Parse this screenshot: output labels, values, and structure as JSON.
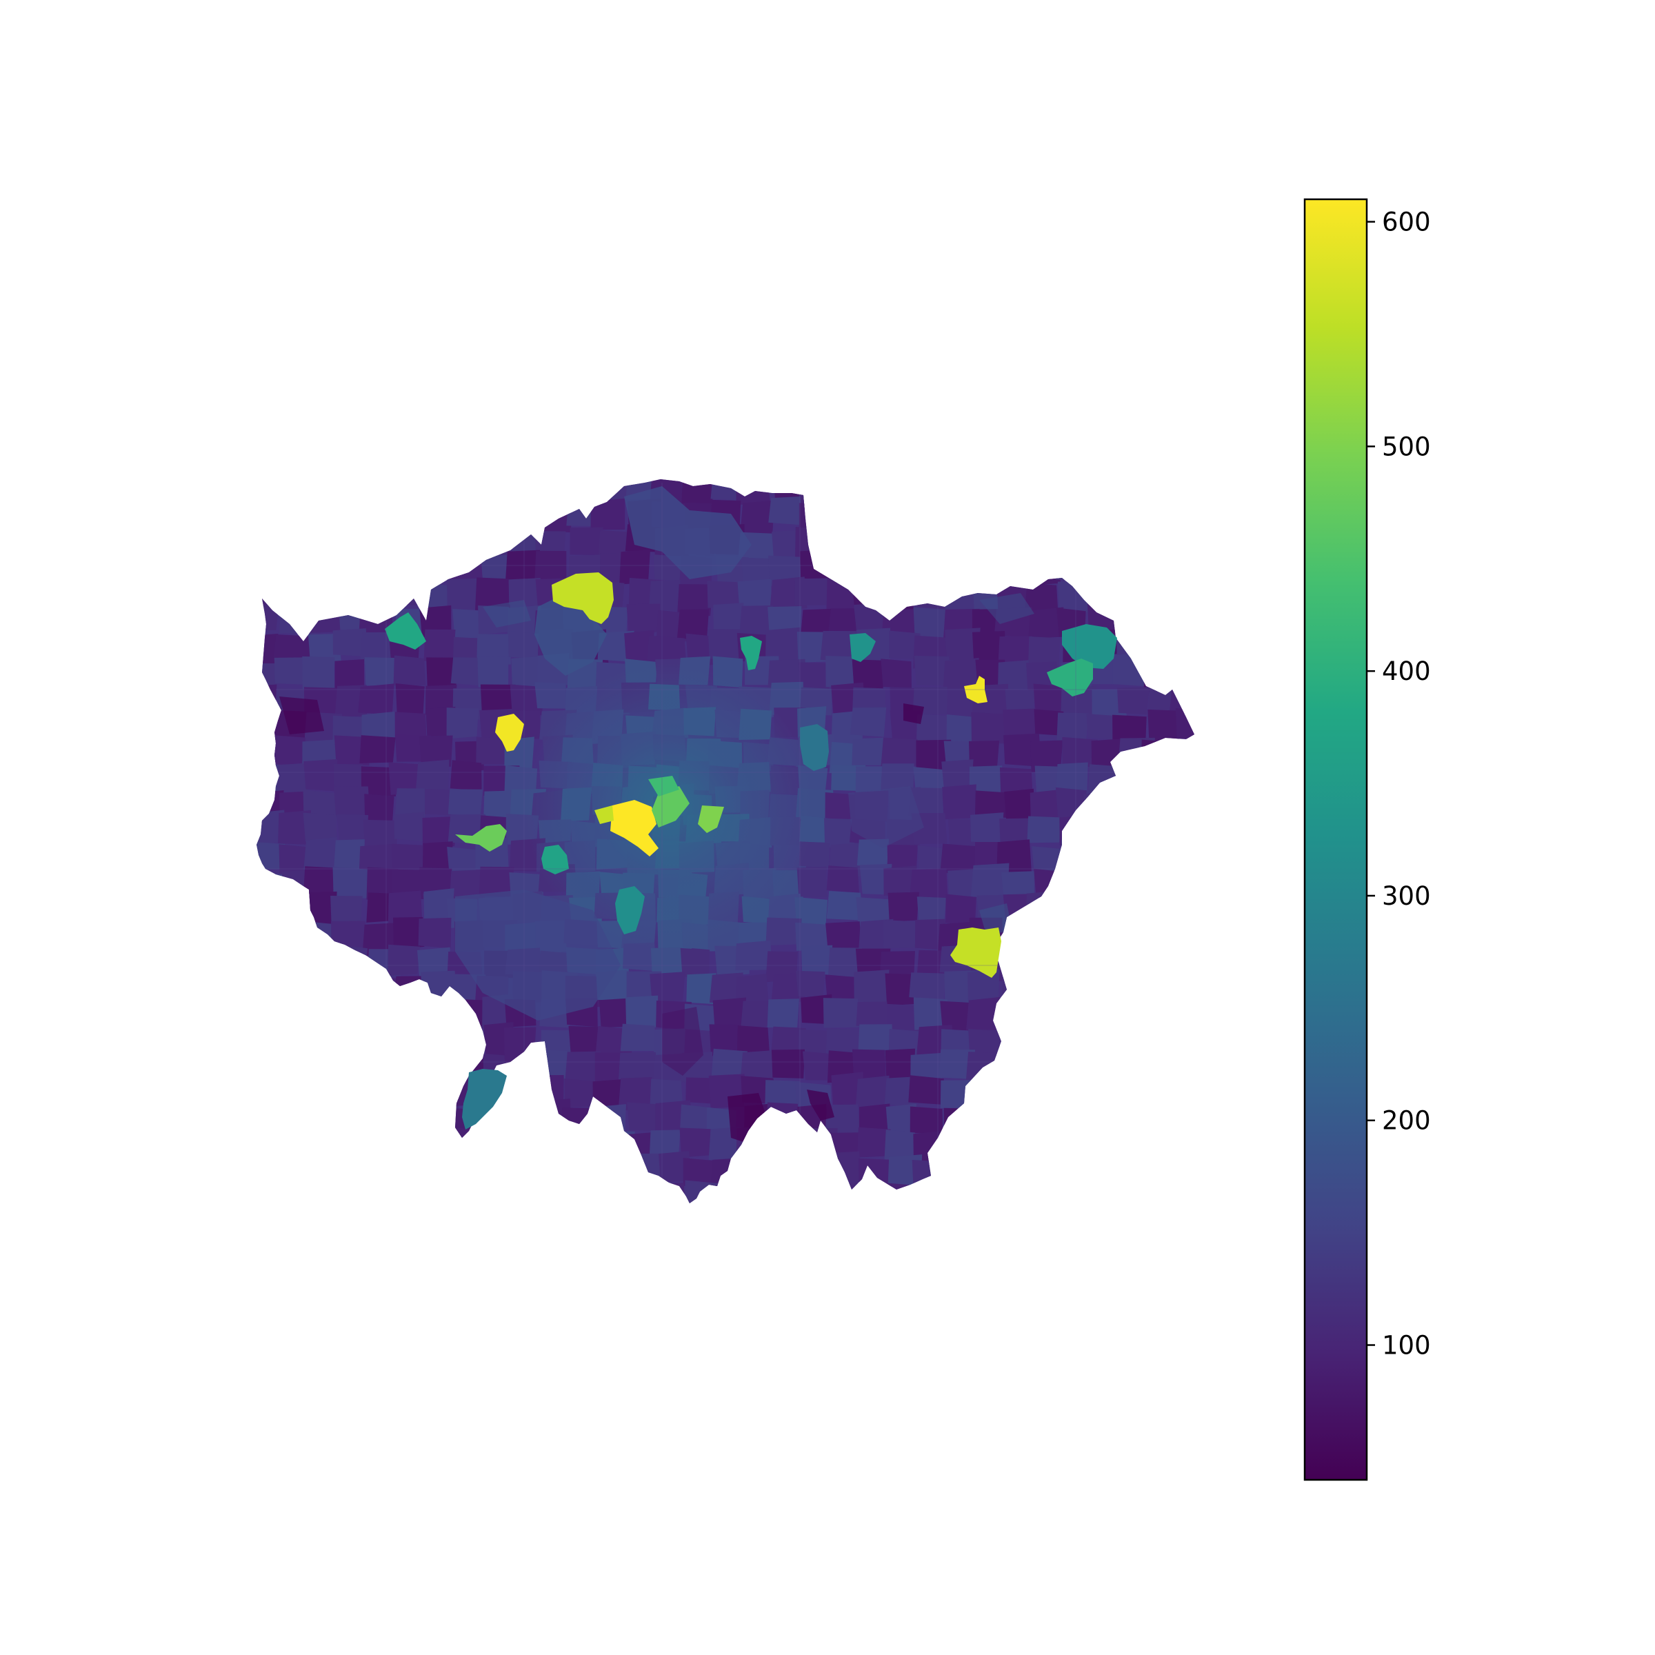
{
  "map": {
    "type": "choropleth",
    "region": "London",
    "colormap": "viridis",
    "axes_visible": false,
    "hotspots": [
      {
        "name": "central-core",
        "value": 610
      },
      {
        "name": "central-west-patch",
        "value": 560
      },
      {
        "name": "central-east-patch",
        "value": 470
      },
      {
        "name": "central-north-patch",
        "value": 430
      },
      {
        "name": "central-south-patch",
        "value": 500
      },
      {
        "name": "north-green-patch",
        "value": 560
      },
      {
        "name": "northwest-teal-patch",
        "value": 380
      },
      {
        "name": "west-yellow-patch",
        "value": 600
      },
      {
        "name": "west-green-patch",
        "value": 480
      },
      {
        "name": "northeast-yellow-patch",
        "value": 600
      },
      {
        "name": "northeast-teal-patch",
        "value": 330
      },
      {
        "name": "northeast-green-teal-patch",
        "value": 400
      },
      {
        "name": "north-teal-patch-a",
        "value": 380
      },
      {
        "name": "north-teal-patch-b",
        "value": 330
      },
      {
        "name": "east-blue-patch",
        "value": 260
      },
      {
        "name": "southeast-yellowgreen-patch",
        "value": 560
      },
      {
        "name": "southwest-teal-patch",
        "value": 270
      },
      {
        "name": "south-teal-patch",
        "value": 320
      },
      {
        "name": "southwest-teal-green-patch",
        "value": 370
      }
    ]
  },
  "colorbar": {
    "min": 40,
    "max": 610,
    "ticks": [
      {
        "value": 100,
        "label": "100"
      },
      {
        "value": 200,
        "label": "200"
      },
      {
        "value": 300,
        "label": "300"
      },
      {
        "value": 400,
        "label": "400"
      },
      {
        "value": 500,
        "label": "500"
      },
      {
        "value": 600,
        "label": "600"
      }
    ]
  }
}
